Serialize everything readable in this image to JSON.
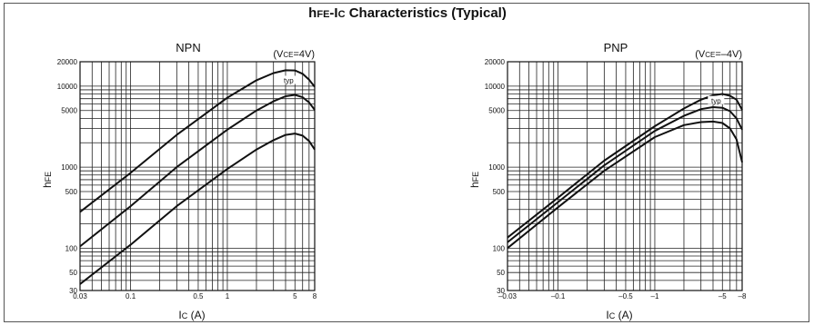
{
  "page_title": {
    "h_main": "h",
    "h_sub": "FE",
    "sep": "-I",
    "c_sub": "C",
    "rest": " Characteristics (Typical)"
  },
  "colors": {
    "line": "#111111",
    "grid": "#222222",
    "border": "#555555",
    "background": "#ffffff"
  },
  "chart_data": [
    {
      "type": "line",
      "title": "NPN",
      "condition": "(VCE=4V)",
      "condition_parts": {
        "open": "(V",
        "sub": "CE",
        "close": "=4V)"
      },
      "xlabel": "IC  (A)",
      "ylabel": "hFE",
      "x_scale": "log",
      "y_scale": "log",
      "xlim": [
        0.03,
        8
      ],
      "ylim": [
        30,
        20000
      ],
      "x_ticks": [
        0.03,
        0.1,
        0.5,
        1,
        5,
        8
      ],
      "x_tick_labels": [
        "0.03",
        "0.1",
        "0.5",
        "1",
        "5",
        "8"
      ],
      "y_ticks": [
        30,
        50,
        100,
        500,
        1000,
        5000,
        10000,
        20000
      ],
      "y_tick_labels": [
        "30",
        "50",
        "100",
        "500",
        "1000",
        "5000",
        "10000",
        "20000"
      ],
      "annotation": "typ",
      "series": [
        {
          "x": [
            0.03,
            0.1,
            0.3,
            1,
            2,
            3,
            4,
            5,
            6,
            7,
            8
          ],
          "y": [
            280,
            850,
            2500,
            7200,
            11800,
            14500,
            15700,
            15600,
            14200,
            12000,
            9800
          ]
        },
        {
          "x": [
            0.03,
            0.1,
            0.3,
            1,
            2,
            3,
            4,
            5,
            6,
            7,
            8
          ],
          "y": [
            105,
            330,
            1000,
            2900,
            5000,
            6500,
            7500,
            7800,
            7300,
            6300,
            5100
          ]
        },
        {
          "x": [
            0.03,
            0.1,
            0.3,
            1,
            2,
            3,
            4,
            5,
            6,
            7,
            8
          ],
          "y": [
            36,
            110,
            330,
            950,
            1650,
            2150,
            2500,
            2600,
            2450,
            2100,
            1650
          ]
        }
      ]
    },
    {
      "type": "line",
      "title": "PNP",
      "condition": "(VCE=–4V)",
      "condition_parts": {
        "open": "(V",
        "sub": "CE",
        "close": "=–4V)"
      },
      "xlabel": "IC  (A)",
      "ylabel": "hFE",
      "x_scale": "log",
      "y_scale": "log",
      "xlim": [
        -0.03,
        -8
      ],
      "ylim": [
        30,
        20000
      ],
      "x_ticks": [
        -0.03,
        -0.1,
        -0.5,
        -1,
        -5,
        -8
      ],
      "x_tick_labels": [
        "–0.03",
        "–0.1",
        "–0.5",
        "–1",
        "–5",
        "–8"
      ],
      "y_ticks": [
        30,
        50,
        100,
        500,
        1000,
        5000,
        10000,
        20000
      ],
      "y_tick_labels": [
        "30",
        "50",
        "100",
        "500",
        "1000",
        "5000",
        "10000",
        "20000"
      ],
      "annotation": "typ",
      "series": [
        {
          "x": [
            -0.03,
            -0.1,
            -0.3,
            -1,
            -2,
            -3,
            -4,
            -5,
            -6,
            -7,
            -8
          ],
          "y": [
            135,
            420,
            1200,
            3200,
            5300,
            6800,
            7700,
            8000,
            7600,
            6800,
            5100
          ]
        },
        {
          "x": [
            -0.03,
            -0.1,
            -0.3,
            -1,
            -2,
            -3,
            -4,
            -5,
            -6,
            -7,
            -8
          ],
          "y": [
            118,
            370,
            1050,
            2800,
            4300,
            5200,
            5500,
            5400,
            4900,
            4000,
            2900
          ]
        },
        {
          "x": [
            -0.03,
            -0.1,
            -0.3,
            -1,
            -2,
            -3,
            -4,
            -5,
            -6,
            -7,
            -8
          ],
          "y": [
            100,
            320,
            900,
            2350,
            3300,
            3600,
            3650,
            3500,
            3000,
            2200,
            1150
          ]
        }
      ]
    }
  ]
}
